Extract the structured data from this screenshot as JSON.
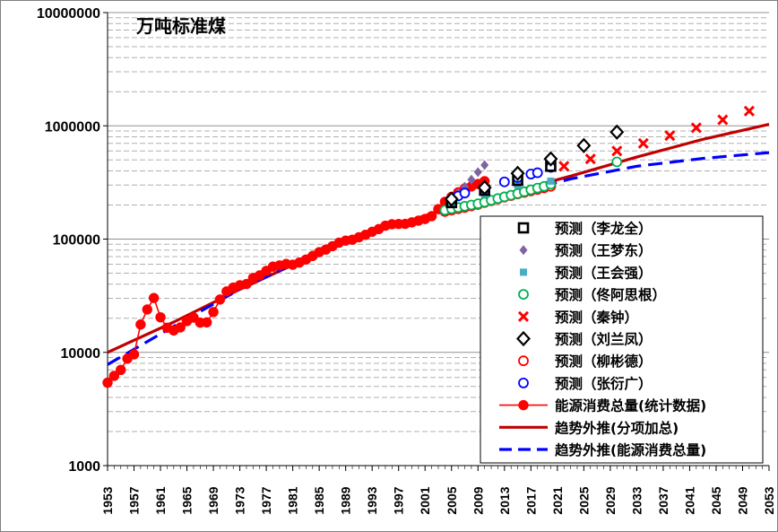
{
  "chart_data": {
    "type": "line",
    "title": "万吨标准煤",
    "y_scale": "log",
    "ylim": [
      1000,
      10000000
    ],
    "y_ticks": [
      "1000",
      "10000",
      "100000",
      "1000000",
      "10000000"
    ],
    "x_range": [
      1953,
      2053
    ],
    "x_ticks": [
      "1953",
      "1957",
      "1961",
      "1965",
      "1969",
      "1973",
      "1977",
      "1981",
      "1985",
      "1989",
      "1993",
      "1997",
      "2001",
      "2005",
      "2009",
      "2013",
      "2017",
      "2021",
      "2025",
      "2029",
      "2033",
      "2037",
      "2041",
      "2045",
      "2049",
      "2053"
    ],
    "grid": "horizontal-major-and-minor",
    "legend_position": "right-center",
    "series": [
      {
        "name": "预测（李龙全）",
        "marker": "square-open",
        "color": "#000000",
        "points": [
          [
            2005,
            210000
          ],
          [
            2010,
            270000
          ],
          [
            2015,
            330000
          ],
          [
            2020,
            440000
          ]
        ]
      },
      {
        "name": "预测（王梦东）",
        "marker": "diamond-filled",
        "color": "#8064a2",
        "points": [
          [
            2005,
            225000
          ],
          [
            2006,
            255000
          ],
          [
            2007,
            290000
          ],
          [
            2008,
            335000
          ],
          [
            2009,
            390000
          ],
          [
            2010,
            450000
          ]
        ]
      },
      {
        "name": "预测（王会强）",
        "marker": "square-filled",
        "color": "#4bacc6",
        "points": [
          [
            2005,
            205000
          ],
          [
            2010,
            250000
          ],
          [
            2015,
            300000
          ],
          [
            2020,
            325000
          ]
        ]
      },
      {
        "name": "预测（佟阿思根）",
        "marker": "circle-open",
        "color": "#00b050",
        "points": [
          [
            2004,
            180000
          ],
          [
            2005,
            185000
          ],
          [
            2006,
            190000
          ],
          [
            2007,
            195000
          ],
          [
            2008,
            200000
          ],
          [
            2009,
            205000
          ],
          [
            2010,
            212000
          ],
          [
            2011,
            220000
          ],
          [
            2012,
            228000
          ],
          [
            2013,
            236000
          ],
          [
            2014,
            244000
          ],
          [
            2015,
            252000
          ],
          [
            2016,
            262000
          ],
          [
            2017,
            272000
          ],
          [
            2018,
            282000
          ],
          [
            2019,
            292000
          ],
          [
            2020,
            305000
          ],
          [
            2030,
            480000
          ]
        ]
      },
      {
        "name": "预测（秦钟）",
        "marker": "x",
        "color": "#ff0000",
        "points": [
          [
            2022,
            440000
          ],
          [
            2026,
            510000
          ],
          [
            2030,
            600000
          ],
          [
            2034,
            700000
          ],
          [
            2038,
            820000
          ],
          [
            2042,
            960000
          ],
          [
            2046,
            1130000
          ],
          [
            2050,
            1350000
          ]
        ]
      },
      {
        "name": "预测（刘兰凤）",
        "marker": "diamond-open",
        "color": "#000000",
        "points": [
          [
            2005,
            225000
          ],
          [
            2010,
            285000
          ],
          [
            2015,
            380000
          ],
          [
            2020,
            510000
          ],
          [
            2025,
            670000
          ],
          [
            2030,
            880000
          ]
        ]
      },
      {
        "name": "预测（柳彬德）",
        "marker": "circle-open",
        "color": "#ff0000",
        "points": [
          [
            2004,
            175000
          ],
          [
            2005,
            180000
          ],
          [
            2006,
            185000
          ],
          [
            2007,
            190000
          ],
          [
            2008,
            196000
          ],
          [
            2009,
            202000
          ],
          [
            2010,
            210000
          ],
          [
            2011,
            218000
          ],
          [
            2012,
            226000
          ],
          [
            2013,
            234000
          ],
          [
            2014,
            242000
          ],
          [
            2015,
            250000
          ],
          [
            2016,
            258000
          ],
          [
            2017,
            266000
          ],
          [
            2018,
            274000
          ],
          [
            2019,
            283000
          ],
          [
            2020,
            292000
          ]
        ]
      },
      {
        "name": "预测（张衍广）",
        "marker": "circle-open",
        "color": "#0000ff",
        "points": [
          [
            2006,
            240000
          ],
          [
            2007,
            255000
          ],
          [
            2010,
            280000
          ],
          [
            2013,
            320000
          ],
          [
            2015,
            350000
          ],
          [
            2017,
            375000
          ],
          [
            2018,
            385000
          ],
          [
            2020,
            430000
          ]
        ]
      },
      {
        "name": "能源消费总量(统计数据)",
        "marker": "circle-filled-line",
        "color": "#ff0000",
        "points": [
          [
            1953,
            5400
          ],
          [
            1954,
            6200
          ],
          [
            1955,
            7000
          ],
          [
            1956,
            8800
          ],
          [
            1957,
            9600
          ],
          [
            1958,
            17600
          ],
          [
            1959,
            23900
          ],
          [
            1960,
            30200
          ],
          [
            1961,
            20400
          ],
          [
            1962,
            16500
          ],
          [
            1963,
            15600
          ],
          [
            1964,
            16600
          ],
          [
            1965,
            18900
          ],
          [
            1966,
            20300
          ],
          [
            1967,
            18300
          ],
          [
            1968,
            18400
          ],
          [
            1969,
            22700
          ],
          [
            1970,
            29300
          ],
          [
            1971,
            34500
          ],
          [
            1972,
            37300
          ],
          [
            1973,
            39100
          ],
          [
            1974,
            40100
          ],
          [
            1975,
            45400
          ],
          [
            1976,
            47800
          ],
          [
            1977,
            52400
          ],
          [
            1978,
            57100
          ],
          [
            1979,
            58600
          ],
          [
            1980,
            60300
          ],
          [
            1981,
            59400
          ],
          [
            1982,
            62100
          ],
          [
            1983,
            66000
          ],
          [
            1984,
            70900
          ],
          [
            1985,
            76700
          ],
          [
            1986,
            80800
          ],
          [
            1987,
            86600
          ],
          [
            1988,
            93000
          ],
          [
            1989,
            96900
          ],
          [
            1990,
            98700
          ],
          [
            1991,
            103800
          ],
          [
            1992,
            109200
          ],
          [
            1993,
            116000
          ],
          [
            1994,
            122700
          ],
          [
            1995,
            131200
          ],
          [
            1996,
            135200
          ],
          [
            1997,
            135900
          ],
          [
            1998,
            136200
          ],
          [
            1999,
            140600
          ],
          [
            2000,
            145500
          ],
          [
            2001,
            150400
          ],
          [
            2002,
            159400
          ],
          [
            2003,
            183800
          ],
          [
            2004,
            213500
          ],
          [
            2005,
            235900
          ],
          [
            2006,
            258700
          ],
          [
            2007,
            280500
          ],
          [
            2008,
            291400
          ],
          [
            2009,
            306600
          ],
          [
            2010,
            324900
          ]
        ]
      },
      {
        "name": "趋势外推(分项加总)",
        "line": "solid",
        "color": "#c00000",
        "points": [
          [
            1953,
            10000
          ],
          [
            1963,
            18500
          ],
          [
            1973,
            36000
          ],
          [
            1983,
            67000
          ],
          [
            1993,
            115000
          ],
          [
            2003,
            175000
          ],
          [
            2013,
            250000
          ],
          [
            2023,
            360000
          ],
          [
            2033,
            530000
          ],
          [
            2043,
            760000
          ],
          [
            2053,
            1030000
          ]
        ]
      },
      {
        "name": "趋势外推(能源消费总量)",
        "line": "dashed",
        "color": "#0000ff",
        "points": [
          [
            1953,
            7800
          ],
          [
            1963,
            17000
          ],
          [
            1973,
            36000
          ],
          [
            1983,
            68000
          ],
          [
            1993,
            118000
          ],
          [
            2003,
            170000
          ],
          [
            2013,
            240000
          ],
          [
            2023,
            340000
          ],
          [
            2033,
            440000
          ],
          [
            2043,
            515000
          ],
          [
            2053,
            580000
          ]
        ]
      }
    ]
  }
}
